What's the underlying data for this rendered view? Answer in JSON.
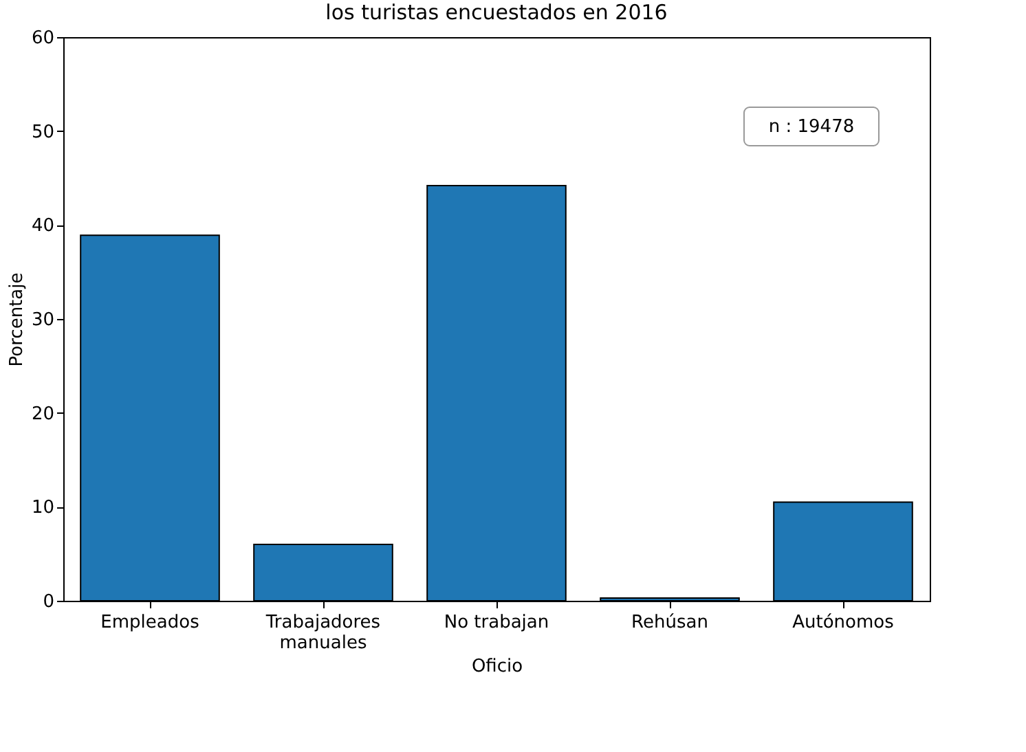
{
  "chart_data": {
    "type": "bar",
    "title": "los turistas encuestados en 2016",
    "xlabel": "Oficio",
    "ylabel": "Porcentaje",
    "categories": [
      "Empleados",
      "Trabajadores manuales",
      "No trabajan",
      "Rehúsan",
      "Autónomos"
    ],
    "values": [
      38.9,
      6.0,
      44.2,
      0.3,
      10.5
    ],
    "color": "#1f77b4",
    "ylim": [
      0,
      60
    ],
    "yticks": [
      0,
      10,
      20,
      30,
      40,
      50,
      60
    ],
    "annotations": [
      "n : 19478"
    ],
    "grid": false
  }
}
